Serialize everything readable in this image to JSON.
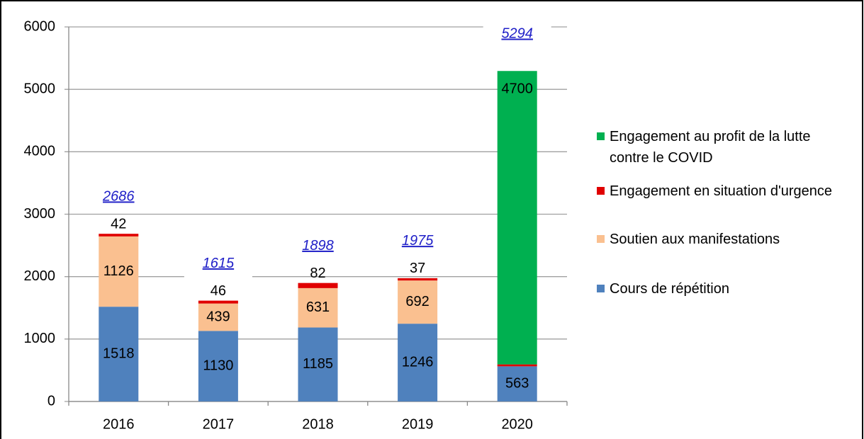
{
  "chart_data": {
    "type": "stacked_bar",
    "categories": [
      "2016",
      "2017",
      "2018",
      "2019",
      "2020"
    ],
    "series": [
      {
        "name": "Cours de répétition",
        "color": "#4f81bd",
        "values": [
          1518,
          1130,
          1185,
          1246,
          563
        ]
      },
      {
        "name": "Soutien aux manifestations",
        "color": "#fac090",
        "values": [
          1126,
          439,
          631,
          692,
          null
        ]
      },
      {
        "name": "Engagement en situation d'urgence",
        "color": "#e00000",
        "values": [
          42,
          46,
          82,
          37,
          31
        ]
      },
      {
        "name": "Engagement au profit de la lutte contre le COVID",
        "color": "#00b050",
        "values": [
          null,
          null,
          null,
          null,
          4700
        ]
      }
    ],
    "totals": [
      2686,
      1615,
      1898,
      1975,
      5294
    ],
    "ylim": [
      0,
      6000
    ],
    "yticks": [
      0,
      1000,
      2000,
      3000,
      4000,
      5000,
      6000
    ],
    "grid": true,
    "legend": "right"
  }
}
